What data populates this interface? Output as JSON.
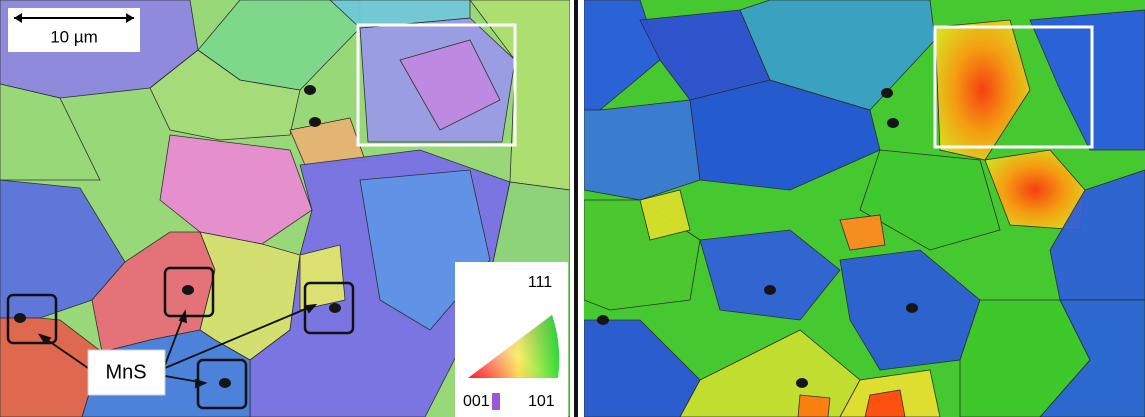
{
  "left_panel": {
    "scale_bar": "10 µm",
    "inclusion_label": "MnS",
    "legend": {
      "top": "111",
      "bottom_left": "001",
      "bottom_right": "101"
    }
  }
}
